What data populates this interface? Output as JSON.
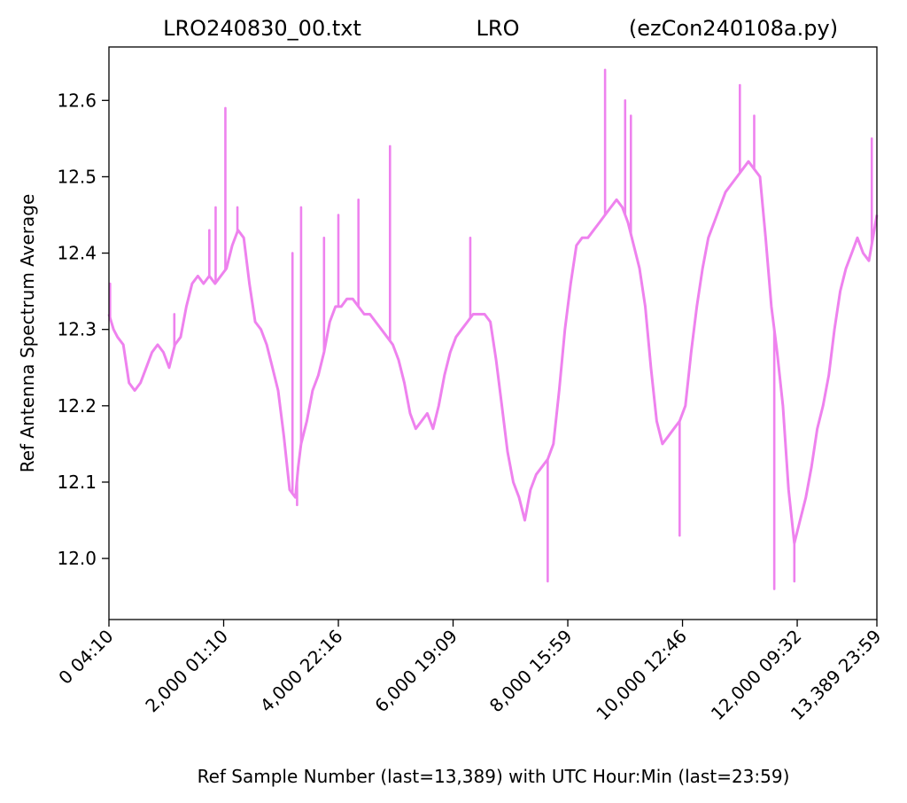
{
  "chart_data": {
    "type": "line",
    "title_parts": [
      "LRO240830_00.txt",
      "LRO",
      "(ezCon240108a.py)"
    ],
    "xlabel": "Ref Sample Number (last=13,389) with UTC Hour:Min (last=23:59)",
    "ylabel": "Ref Antenna Spectrum Average",
    "xlim": [
      0,
      13389
    ],
    "ylim": [
      11.92,
      12.67
    ],
    "grid": false,
    "line_color": "#ee82ee",
    "x_ticks": [
      {
        "value": 0,
        "label": "0  04:10"
      },
      {
        "value": 2000,
        "label": "2,000  01:10"
      },
      {
        "value": 4000,
        "label": "4,000  22:16"
      },
      {
        "value": 6000,
        "label": "6,000  19:09"
      },
      {
        "value": 8000,
        "label": "8,000  15:59"
      },
      {
        "value": 10000,
        "label": "10,000  12:46"
      },
      {
        "value": 12000,
        "label": "12,000  09:32"
      },
      {
        "value": 13389,
        "label": "13,389  23:59"
      }
    ],
    "y_ticks": [
      {
        "value": 12.0,
        "label": "12.0"
      },
      {
        "value": 12.1,
        "label": "12.1"
      },
      {
        "value": 12.2,
        "label": "12.2"
      },
      {
        "value": 12.3,
        "label": "12.3"
      },
      {
        "value": 12.4,
        "label": "12.4"
      },
      {
        "value": 12.5,
        "label": "12.5"
      },
      {
        "value": 12.6,
        "label": "12.6"
      }
    ],
    "series": [
      {
        "x": [
          0,
          80,
          150,
          250,
          350,
          450,
          550,
          650,
          750,
          850,
          950,
          1050,
          1150,
          1250,
          1350,
          1450,
          1550,
          1650,
          1750,
          1850,
          1950,
          2050,
          2150,
          2250,
          2350,
          2450,
          2550,
          2650,
          2750,
          2850,
          2950,
          3050,
          3150,
          3250,
          3300,
          3350,
          3450,
          3550,
          3650,
          3750,
          3850,
          3950,
          4050,
          4150,
          4250,
          4350,
          4450,
          4550,
          4650,
          4750,
          4850,
          4950,
          5050,
          5150,
          5250,
          5350,
          5450,
          5550,
          5650,
          5750,
          5850,
          5950,
          6050,
          6150,
          6250,
          6350,
          6450,
          6550,
          6650,
          6750,
          6850,
          6950,
          7050,
          7150,
          7250,
          7350,
          7450,
          7550,
          7650,
          7750,
          7850,
          7950,
          8050,
          8150,
          8250,
          8350,
          8450,
          8550,
          8650,
          8750,
          8850,
          8950,
          9050,
          9150,
          9250,
          9350,
          9450,
          9550,
          9650,
          9750,
          9850,
          9950,
          10050,
          10150,
          10250,
          10350,
          10450,
          10550,
          10650,
          10750,
          10850,
          10950,
          11050,
          11150,
          11250,
          11350,
          11450,
          11550,
          11650,
          11750,
          11850,
          11950,
          12050,
          12150,
          12250,
          12350,
          12450,
          12550,
          12650,
          12750,
          12850,
          12950,
          13050,
          13150,
          13250,
          13389
        ],
        "y": [
          12.32,
          12.3,
          12.29,
          12.28,
          12.23,
          12.22,
          12.23,
          12.25,
          12.27,
          12.28,
          12.27,
          12.25,
          12.28,
          12.29,
          12.33,
          12.36,
          12.37,
          12.36,
          12.37,
          12.36,
          12.37,
          12.38,
          12.41,
          12.43,
          12.42,
          12.36,
          12.31,
          12.3,
          12.28,
          12.25,
          12.22,
          12.16,
          12.09,
          12.08,
          12.12,
          12.15,
          12.18,
          12.22,
          12.24,
          12.27,
          12.31,
          12.33,
          12.33,
          12.34,
          12.34,
          12.33,
          12.32,
          12.32,
          12.31,
          12.3,
          12.29,
          12.28,
          12.26,
          12.23,
          12.19,
          12.17,
          12.18,
          12.19,
          12.17,
          12.2,
          12.24,
          12.27,
          12.29,
          12.3,
          12.31,
          12.32,
          12.32,
          12.32,
          12.31,
          12.26,
          12.2,
          12.14,
          12.1,
          12.08,
          12.05,
          12.09,
          12.11,
          12.12,
          12.13,
          12.15,
          12.22,
          12.3,
          12.36,
          12.41,
          12.42,
          12.42,
          12.43,
          12.44,
          12.45,
          12.46,
          12.47,
          12.46,
          12.44,
          12.41,
          12.38,
          12.33,
          12.25,
          12.18,
          12.15,
          12.16,
          12.17,
          12.18,
          12.2,
          12.27,
          12.33,
          12.38,
          12.42,
          12.44,
          12.46,
          12.48,
          12.49,
          12.5,
          12.51,
          12.52,
          12.51,
          12.5,
          12.42,
          12.33,
          12.27,
          12.2,
          12.09,
          12.02,
          12.05,
          12.08,
          12.12,
          12.17,
          12.2,
          12.24,
          12.3,
          12.35,
          12.38,
          12.4,
          12.42,
          12.4,
          12.39,
          12.45
        ]
      }
    ],
    "spikes": [
      {
        "x": 20,
        "y": 12.36
      },
      {
        "x": 1140,
        "y": 12.32
      },
      {
        "x": 1750,
        "y": 12.43
      },
      {
        "x": 1860,
        "y": 12.46
      },
      {
        "x": 2030,
        "y": 12.59
      },
      {
        "x": 2240,
        "y": 12.46
      },
      {
        "x": 3200,
        "y": 12.4
      },
      {
        "x": 3350,
        "y": 12.46
      },
      {
        "x": 3750,
        "y": 12.42
      },
      {
        "x": 4000,
        "y": 12.45
      },
      {
        "x": 4350,
        "y": 12.47
      },
      {
        "x": 4900,
        "y": 12.54
      },
      {
        "x": 6300,
        "y": 12.42
      },
      {
        "x": 8650,
        "y": 12.64
      },
      {
        "x": 9000,
        "y": 12.6
      },
      {
        "x": 9100,
        "y": 12.58
      },
      {
        "x": 11000,
        "y": 12.62
      },
      {
        "x": 11250,
        "y": 12.58
      },
      {
        "x": 13300,
        "y": 12.55
      },
      {
        "x": 3280,
        "y": 12.07
      },
      {
        "x": 7650,
        "y": 11.97
      },
      {
        "x": 9950,
        "y": 12.03
      },
      {
        "x": 11600,
        "y": 11.96
      },
      {
        "x": 11950,
        "y": 11.97
      }
    ]
  }
}
